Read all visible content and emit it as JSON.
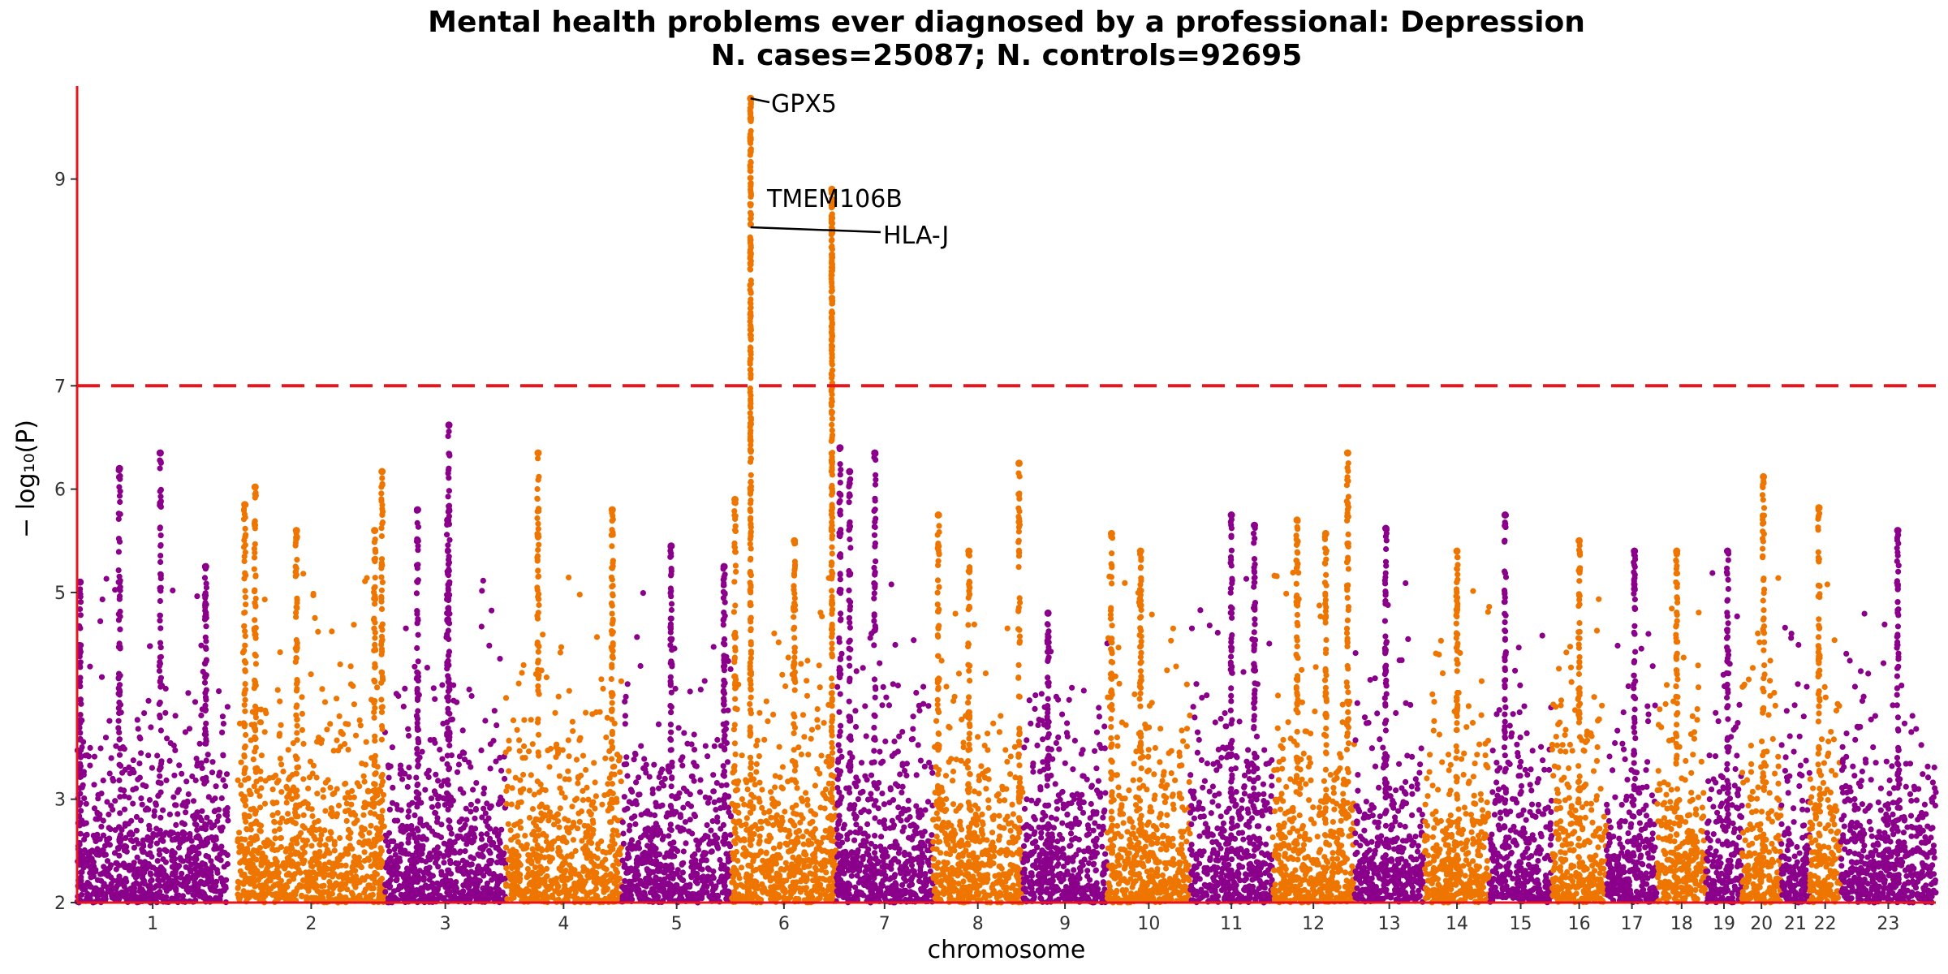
{
  "chart_data": {
    "type": "scatter",
    "title": "Mental health problems ever diagnosed by a professional: Depression",
    "subtitle": "N. cases=25087; N. controls=92695",
    "xlabel": "chromosome",
    "ylabel": "− log₁₀(P)",
    "ylim": [
      2,
      9.9
    ],
    "yticks": [
      2,
      3,
      5,
      6,
      7,
      9
    ],
    "grid": false,
    "significance_line": 7,
    "colors": {
      "purple": "#8B008B",
      "orange": "#EE7600",
      "threshold": "#E8141B",
      "axis": "#E8141B"
    },
    "chromosomes": [
      {
        "label": "1",
        "start": 0,
        "end": 248,
        "color": "purple"
      },
      {
        "label": "2",
        "start": 263,
        "end": 505,
        "color": "orange"
      },
      {
        "label": "3",
        "start": 505,
        "end": 703,
        "color": "purple"
      },
      {
        "label": "4",
        "start": 703,
        "end": 893,
        "color": "orange"
      },
      {
        "label": "5",
        "start": 893,
        "end": 1074,
        "color": "purple"
      },
      {
        "label": "6",
        "start": 1074,
        "end": 1245,
        "color": "orange"
      },
      {
        "label": "7",
        "start": 1245,
        "end": 1404,
        "color": "purple"
      },
      {
        "label": "8",
        "start": 1404,
        "end": 1551,
        "color": "orange"
      },
      {
        "label": "9",
        "start": 1551,
        "end": 1690,
        "color": "purple"
      },
      {
        "label": "10",
        "start": 1690,
        "end": 1826,
        "color": "orange"
      },
      {
        "label": "11",
        "start": 1826,
        "end": 1961,
        "color": "purple"
      },
      {
        "label": "12",
        "start": 1961,
        "end": 2095,
        "color": "orange"
      },
      {
        "label": "13",
        "start": 2095,
        "end": 2210,
        "color": "purple"
      },
      {
        "label": "14",
        "start": 2210,
        "end": 2317,
        "color": "orange"
      },
      {
        "label": "15",
        "start": 2317,
        "end": 2419,
        "color": "purple"
      },
      {
        "label": "16",
        "start": 2419,
        "end": 2509,
        "color": "orange"
      },
      {
        "label": "17",
        "start": 2509,
        "end": 2592,
        "color": "purple"
      },
      {
        "label": "18",
        "start": 2592,
        "end": 2672,
        "color": "orange"
      },
      {
        "label": "19",
        "start": 2672,
        "end": 2731,
        "color": "purple"
      },
      {
        "label": "20",
        "start": 2731,
        "end": 2795,
        "color": "orange"
      },
      {
        "label": "21",
        "start": 2795,
        "end": 2842,
        "color": "purple"
      },
      {
        "label": "22",
        "start": 2842,
        "end": 2893,
        "color": "orange"
      },
      {
        "label": "23",
        "start": 2893,
        "end": 3049,
        "color": "purple"
      }
    ],
    "peaks": [
      {
        "chr": "1",
        "pos": 0.55,
        "maxp": 6.35
      },
      {
        "chr": "1",
        "pos": 0.28,
        "maxp": 6.2
      },
      {
        "chr": "1",
        "pos": 0.85,
        "maxp": 5.25
      },
      {
        "chr": "1",
        "pos": 0.02,
        "maxp": 5.1
      },
      {
        "chr": "2",
        "pos": 0.05,
        "maxp": 5.85
      },
      {
        "chr": "2",
        "pos": 0.12,
        "maxp": 6.02
      },
      {
        "chr": "2",
        "pos": 0.4,
        "maxp": 5.6
      },
      {
        "chr": "2",
        "pos": 0.98,
        "maxp": 6.17
      },
      {
        "chr": "2",
        "pos": 0.93,
        "maxp": 5.6
      },
      {
        "chr": "3",
        "pos": 0.27,
        "maxp": 5.8
      },
      {
        "chr": "3",
        "pos": 0.53,
        "maxp": 6.62
      },
      {
        "chr": "3",
        "pos": 0.52,
        "maxp": 5.7
      },
      {
        "chr": "4",
        "pos": 0.28,
        "maxp": 6.35
      },
      {
        "chr": "4",
        "pos": 0.92,
        "maxp": 5.8
      },
      {
        "chr": "5",
        "pos": 0.45,
        "maxp": 5.45
      },
      {
        "chr": "5",
        "pos": 0.93,
        "maxp": 5.25
      },
      {
        "chr": "6",
        "pos": 0.03,
        "maxp": 5.9
      },
      {
        "chr": "6",
        "pos": 0.18,
        "maxp": 9.78,
        "label": "GPX5"
      },
      {
        "chr": "6",
        "pos": 0.6,
        "maxp": 5.5
      },
      {
        "chr": "6",
        "pos": 0.96,
        "maxp": 8.9,
        "label": "TMEM106B"
      },
      {
        "chr": "7",
        "pos": 0.04,
        "maxp": 6.4
      },
      {
        "chr": "7",
        "pos": 0.14,
        "maxp": 6.17
      },
      {
        "chr": "7",
        "pos": 0.4,
        "maxp": 6.35
      },
      {
        "chr": "8",
        "pos": 0.06,
        "maxp": 5.75
      },
      {
        "chr": "8",
        "pos": 0.4,
        "maxp": 5.4
      },
      {
        "chr": "8",
        "pos": 0.96,
        "maxp": 6.25
      },
      {
        "chr": "9",
        "pos": 0.3,
        "maxp": 4.8
      },
      {
        "chr": "10",
        "pos": 0.05,
        "maxp": 5.57
      },
      {
        "chr": "10",
        "pos": 0.4,
        "maxp": 5.4
      },
      {
        "chr": "11",
        "pos": 0.5,
        "maxp": 5.75
      },
      {
        "chr": "11",
        "pos": 0.78,
        "maxp": 5.65
      },
      {
        "chr": "12",
        "pos": 0.3,
        "maxp": 5.7
      },
      {
        "chr": "12",
        "pos": 0.65,
        "maxp": 5.57
      },
      {
        "chr": "12",
        "pos": 0.92,
        "maxp": 6.35
      },
      {
        "chr": "13",
        "pos": 0.45,
        "maxp": 5.62
      },
      {
        "chr": "14",
        "pos": 0.5,
        "maxp": 5.4
      },
      {
        "chr": "15",
        "pos": 0.25,
        "maxp": 5.75
      },
      {
        "chr": "16",
        "pos": 0.5,
        "maxp": 5.5
      },
      {
        "chr": "17",
        "pos": 0.55,
        "maxp": 5.4
      },
      {
        "chr": "18",
        "pos": 0.4,
        "maxp": 5.4
      },
      {
        "chr": "19",
        "pos": 0.6,
        "maxp": 5.4
      },
      {
        "chr": "20",
        "pos": 0.55,
        "maxp": 6.12
      },
      {
        "chr": "22",
        "pos": 0.3,
        "maxp": 5.82
      },
      {
        "chr": "23",
        "pos": 0.6,
        "maxp": 5.6
      }
    ],
    "annotations": [
      {
        "text": "GPX5",
        "chr": "6",
        "pos": 0.18,
        "y": 9.78
      },
      {
        "text": "TMEM106B",
        "chr": "6",
        "pos": 0.18,
        "y": 9.05
      },
      {
        "text": "HLA-J",
        "chr": "6",
        "pos": 0.18,
        "y": 8.85
      }
    ]
  }
}
